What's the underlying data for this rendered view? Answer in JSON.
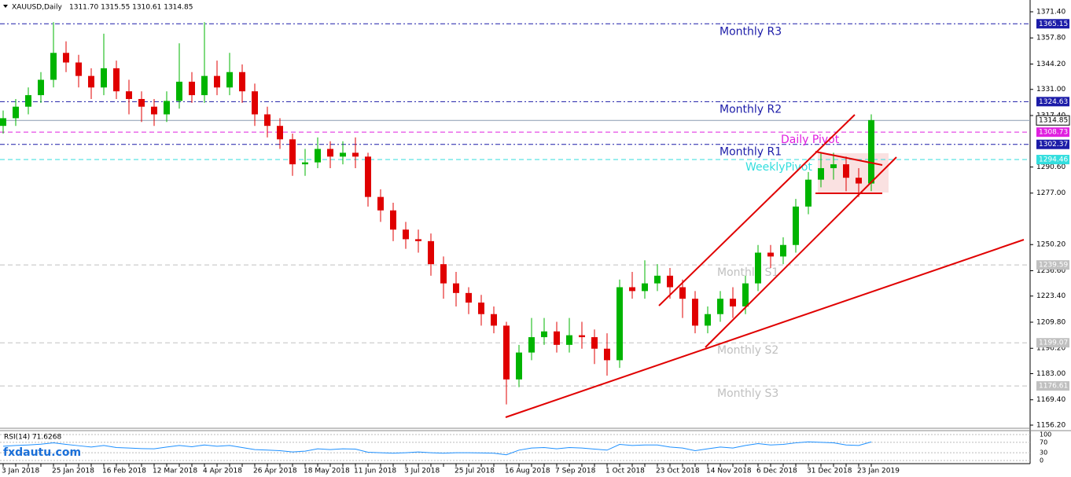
{
  "chart_data": {
    "type": "candlestick",
    "title": "XAUUSD,Daily",
    "ohlc_text": "1311.70 1315.55 1310.61 1314.85",
    "watermark": "fxdautu.com",
    "categories": [
      "3 Jan 2018",
      null,
      null,
      null,
      "25 Jan 2018",
      null,
      null,
      null,
      "16 Feb 2018",
      null,
      null,
      null,
      "12 Mar 2018",
      null,
      null,
      null,
      "4 Apr 2018",
      null,
      null,
      null,
      "26 Apr 2018",
      null,
      null,
      null,
      "18 May 2018",
      null,
      null,
      null,
      "11 Jun 2018",
      null,
      null,
      null,
      "3 Jul 2018",
      null,
      null,
      null,
      "25 Jul 2018",
      null,
      null,
      null,
      "16 Aug 2018",
      null,
      null,
      null,
      "7 Sep 2018",
      null,
      null,
      null,
      "1 Oct 2018",
      null,
      null,
      null,
      "23 Oct 2018",
      null,
      null,
      null,
      "14 Nov 2018",
      null,
      null,
      null,
      "6 Dec 2018",
      null,
      null,
      null,
      "31 Dec 2018",
      null,
      null,
      null,
      "23 Jan 2019",
      null
    ],
    "open": [
      1312,
      1316,
      1322,
      1328,
      1336,
      1350,
      1345,
      1338,
      1332,
      1342,
      1330,
      1326,
      1322,
      1318,
      1325,
      1335,
      1328,
      1338,
      1332,
      1340,
      1330,
      1318,
      1312,
      1305,
      1292,
      1293,
      1300,
      1296,
      1298,
      1296,
      1275,
      1268,
      1258,
      1253,
      1252,
      1240,
      1230,
      1225,
      1220,
      1214,
      1208,
      1180,
      1194,
      1202,
      1205,
      1198,
      1203,
      1202,
      1196,
      1190,
      1228,
      1226,
      1230,
      1234,
      1228,
      1222,
      1208,
      1214,
      1222,
      1218,
      1230,
      1246,
      1244,
      1250,
      1270,
      1284,
      1290,
      1292,
      1285,
      1282
    ],
    "high": [
      1320,
      1326,
      1332,
      1340,
      1366,
      1356,
      1349,
      1342,
      1360,
      1346,
      1336,
      1330,
      1326,
      1330,
      1355,
      1340,
      1366,
      1346,
      1350,
      1344,
      1334,
      1322,
      1316,
      1308,
      1300,
      1306,
      1304,
      1304,
      1306,
      1298,
      1279,
      1272,
      1262,
      1258,
      1256,
      1244,
      1236,
      1228,
      1224,
      1218,
      1210,
      1198,
      1212,
      1212,
      1210,
      1212,
      1210,
      1206,
      1204,
      1232,
      1236,
      1242,
      1240,
      1238,
      1232,
      1226,
      1218,
      1226,
      1228,
      1234,
      1250,
      1250,
      1254,
      1274,
      1288,
      1298,
      1298,
      1296,
      1290,
      1318
    ],
    "low": [
      1308,
      1312,
      1318,
      1324,
      1332,
      1340,
      1332,
      1326,
      1328,
      1326,
      1318,
      1314,
      1312,
      1314,
      1321,
      1324,
      1324,
      1328,
      1328,
      1324,
      1312,
      1306,
      1300,
      1286,
      1286,
      1290,
      1290,
      1292,
      1290,
      1270,
      1262,
      1252,
      1248,
      1246,
      1234,
      1222,
      1218,
      1214,
      1208,
      1204,
      1167,
      1176,
      1190,
      1198,
      1194,
      1194,
      1196,
      1188,
      1182,
      1186,
      1222,
      1222,
      1226,
      1222,
      1212,
      1204,
      1204,
      1210,
      1212,
      1214,
      1226,
      1238,
      1240,
      1246,
      1266,
      1280,
      1284,
      1278,
      1275,
      1278
    ],
    "close": [
      1316,
      1322,
      1328,
      1336,
      1350,
      1345,
      1338,
      1332,
      1342,
      1330,
      1326,
      1322,
      1318,
      1325,
      1335,
      1328,
      1338,
      1332,
      1340,
      1330,
      1318,
      1312,
      1305,
      1292,
      1293,
      1300,
      1296,
      1298,
      1296,
      1275,
      1268,
      1258,
      1253,
      1252,
      1240,
      1230,
      1225,
      1220,
      1214,
      1208,
      1180,
      1194,
      1202,
      1205,
      1198,
      1203,
      1202,
      1196,
      1190,
      1228,
      1226,
      1230,
      1234,
      1228,
      1222,
      1208,
      1214,
      1222,
      1218,
      1230,
      1246,
      1244,
      1250,
      1270,
      1284,
      1290,
      1292,
      1285,
      1282,
      1315
    ],
    "up_color": "#00b400",
    "down_color": "#e00000",
    "ylim": [
      1156.2,
      1371.4
    ],
    "yticks": [
      {
        "value": 1371.4,
        "label": "1371.40"
      },
      {
        "value": 1357.8,
        "label": "1357.80"
      },
      {
        "value": 1344.2,
        "label": "1344.20"
      },
      {
        "value": 1331,
        "label": "1331.00"
      },
      {
        "value": 1317.4,
        "label": "1317.40"
      },
      {
        "value": 1290.6,
        "label": "1290.60"
      },
      {
        "value": 1277,
        "label": "1277.00"
      },
      {
        "value": 1250.2,
        "label": "1250.20"
      },
      {
        "value": 1236.6,
        "label": "1236.60"
      },
      {
        "value": 1223.4,
        "label": "1223.40"
      },
      {
        "value": 1209.8,
        "label": "1209.80"
      },
      {
        "value": 1196.2,
        "label": "1196.20"
      },
      {
        "value": 1183,
        "label": "1183.00"
      },
      {
        "value": 1169.4,
        "label": "1169.40"
      },
      {
        "value": 1156.2,
        "label": "1156.20"
      }
    ],
    "last_price": 1314.85,
    "levels": [
      {
        "name": "Monthly R3",
        "value": 1365.15,
        "color": "#1c1ca8"
      },
      {
        "name": "Monthly R2",
        "value": 1324.63,
        "color": "#1c1ca8"
      },
      {
        "name": "Monthly R1",
        "value": 1302.37,
        "color": "#1c1ca8"
      },
      {
        "name": "Daily Pivot",
        "value": 1308.73,
        "color": "#e020e0"
      },
      {
        "name": "WeeklyPivot",
        "value": 1294.46,
        "color": "#33dede"
      },
      {
        "name": "Monthly S1",
        "value": 1239.59,
        "color": "#c0c0c0"
      },
      {
        "name": "Monthly S2",
        "value": 1199.07,
        "color": "#c0c0c0"
      },
      {
        "name": "Monthly S3",
        "value": 1176.61,
        "color": "#c0c0c0"
      }
    ],
    "rsi": {
      "label": "RSI(14) 71.6268",
      "color": "#1e90ff",
      "values": [
        55,
        58,
        60,
        63,
        68,
        62,
        57,
        52,
        58,
        50,
        48,
        46,
        45,
        52,
        58,
        53,
        60,
        55,
        58,
        50,
        42,
        40,
        38,
        33,
        36,
        45,
        42,
        45,
        44,
        32,
        30,
        28,
        30,
        33,
        30,
        28,
        30,
        30,
        29,
        28,
        22,
        40,
        48,
        50,
        45,
        50,
        48,
        44,
        40,
        62,
        58,
        60,
        60,
        52,
        48,
        38,
        45,
        52,
        48,
        58,
        65,
        60,
        62,
        68,
        72,
        70,
        68,
        60,
        58,
        71.6
      ],
      "ylim": [
        0,
        100
      ],
      "yticks": [
        100,
        70,
        30,
        0
      ]
    }
  }
}
